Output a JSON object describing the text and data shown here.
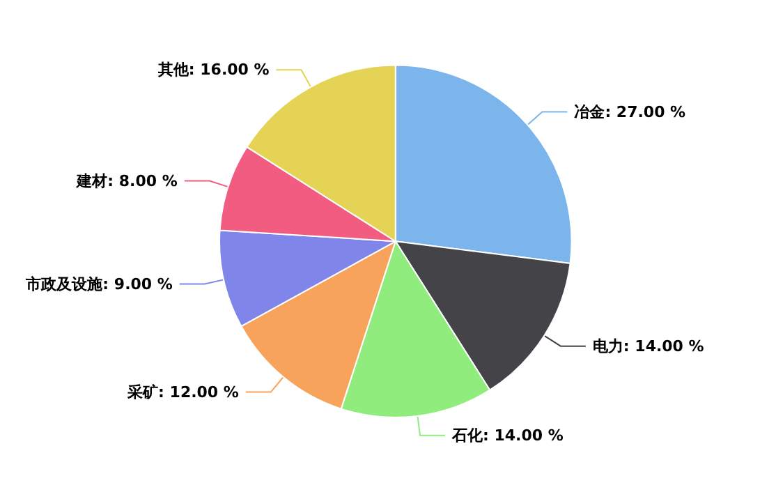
{
  "chart_data": {
    "type": "pie",
    "categories": [
      "冶金",
      "电力",
      "石化",
      "采矿",
      "市政及设施",
      "建材",
      "其他"
    ],
    "values": [
      27,
      14,
      14,
      12,
      9,
      8,
      16
    ],
    "colors": [
      "#7cb5ec",
      "#434348",
      "#90ed7d",
      "#f7a35c",
      "#8085e9",
      "#f15c80",
      "#e4d354"
    ],
    "value_labels": [
      "27.00 %",
      "14.00 %",
      "14.00 %",
      "12.00 %",
      "9.00 %",
      "8.00 %",
      "16.00 %"
    ],
    "legend": false
  }
}
